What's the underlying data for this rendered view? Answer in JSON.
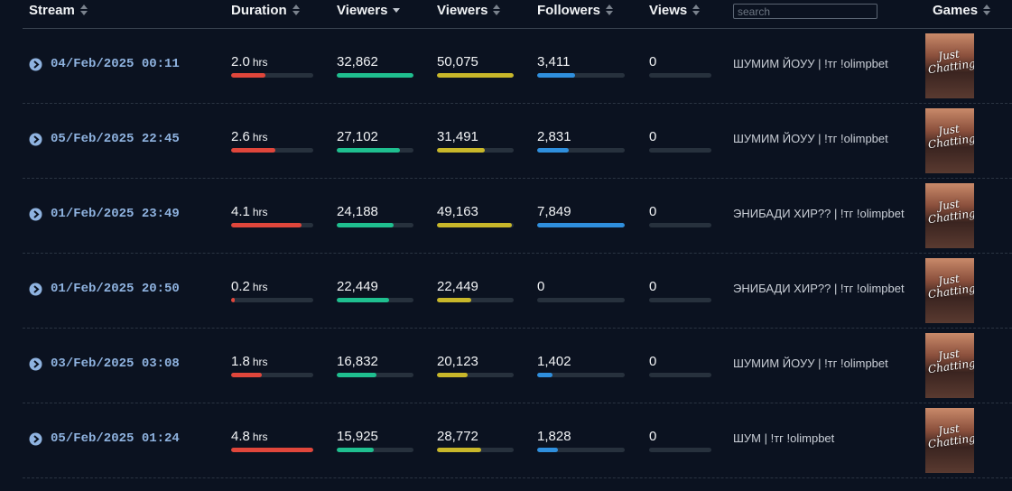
{
  "header": {
    "stream": "Stream",
    "duration": "Duration",
    "viewers": "Viewers",
    "peak_viewers": "Viewers",
    "followers": "Followers",
    "views": "Views",
    "search_placeholder": "search",
    "games": "Games"
  },
  "rows": [
    {
      "date": "04/Feb/2025 00:11",
      "duration": "2.0",
      "unit": "hrs",
      "viewers": "32,862",
      "peak_viewers": "50,075",
      "followers": "3,411",
      "views": "0",
      "title": "ШУМИМ ЙОУУ | !тг !olimpbet",
      "game": "Just Chatting"
    },
    {
      "date": "05/Feb/2025 22:45",
      "duration": "2.6",
      "unit": "hrs",
      "viewers": "27,102",
      "peak_viewers": "31,491",
      "followers": "2,831",
      "views": "0",
      "title": "ШУМИМ ЙОУУ | !тг !olimpbet",
      "game": "Just Chatting"
    },
    {
      "date": "01/Feb/2025 23:49",
      "duration": "4.1",
      "unit": "hrs",
      "viewers": "24,188",
      "peak_viewers": "49,163",
      "followers": "7,849",
      "views": "0",
      "title": "ЭНИБАДИ ХИР?? | !тг !olimpbet",
      "game": "Just Chatting"
    },
    {
      "date": "01/Feb/2025 20:50",
      "duration": "0.2",
      "unit": "hrs",
      "viewers": "22,449",
      "peak_viewers": "22,449",
      "followers": "0",
      "views": "0",
      "title": "ЭНИБАДИ ХИР?? | !тг !olimpbet",
      "game": "Just Chatting"
    },
    {
      "date": "03/Feb/2025 03:08",
      "duration": "1.8",
      "unit": "hrs",
      "viewers": "16,832",
      "peak_viewers": "20,123",
      "followers": "1,402",
      "views": "0",
      "title": "ШУМИМ ЙОУУ | !тг !olimpbet",
      "game": "Just Chatting"
    },
    {
      "date": "05/Feb/2025 01:24",
      "duration": "4.8",
      "unit": "hrs",
      "viewers": "15,925",
      "peak_viewers": "28,772",
      "followers": "1,828",
      "views": "0",
      "title": "ШУМ | !тг !olimpbet",
      "game": "Just Chatting"
    }
  ]
}
